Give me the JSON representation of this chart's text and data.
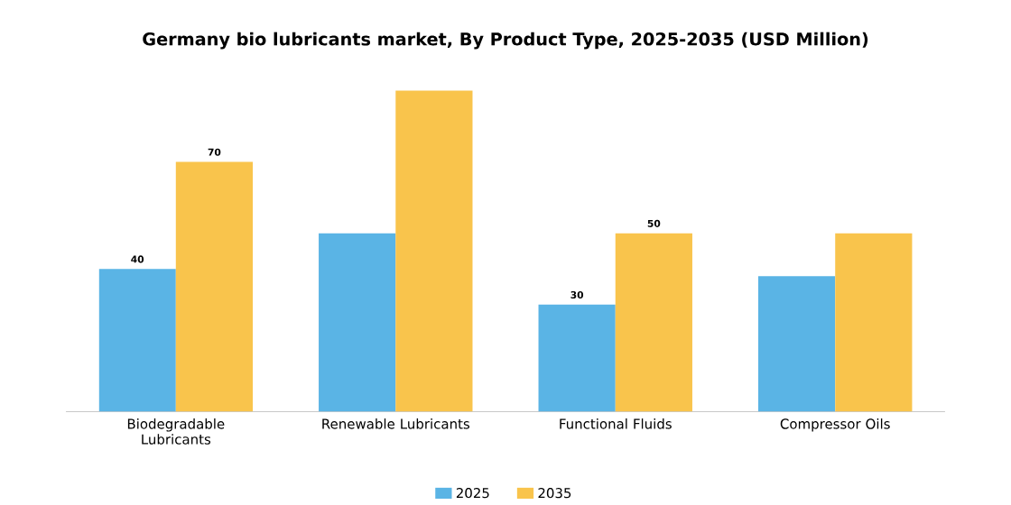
{
  "chart_data": {
    "type": "bar",
    "title": "Germany bio lubricants market, By Product Type, 2025-2035 (USD Million)",
    "categories": [
      "Biodegradable Lubricants",
      "Renewable Lubricants",
      "Functional Fluids",
      "Compressor Oils"
    ],
    "series": [
      {
        "name": "2025",
        "color": "#5ab4e5",
        "values": [
          40,
          50,
          30,
          38
        ],
        "value_labels": [
          "40",
          null,
          "30",
          null
        ]
      },
      {
        "name": "2035",
        "color": "#f9c44c",
        "values": [
          70,
          90,
          50,
          50
        ],
        "value_labels": [
          "70",
          null,
          "50",
          null
        ]
      }
    ],
    "legend": "bottom",
    "grid": false
  }
}
